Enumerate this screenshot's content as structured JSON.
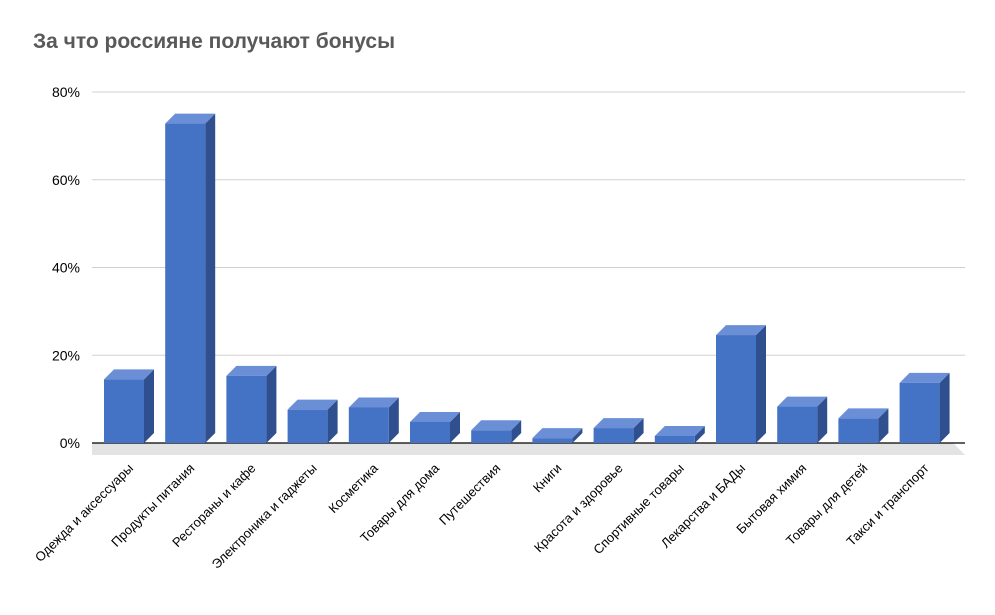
{
  "chart_data": {
    "type": "bar",
    "title": "За что россияне получают бонусы",
    "xlabel": "",
    "ylabel": "",
    "ylim": [
      0,
      80
    ],
    "y_ticks": [
      "0%",
      "20%",
      "40%",
      "60%",
      "80%"
    ],
    "y_tick_values": [
      0,
      20,
      40,
      60,
      80
    ],
    "grid": true,
    "legend": "none",
    "bar_style": "3d",
    "colors": {
      "bar_front": "#4472c4",
      "bar_top": "#6a8fd6",
      "bar_side": "#2f4f8f",
      "floor": "#e3e3e3",
      "grid": "#d0d0d0",
      "axis": "#000000"
    },
    "categories": [
      "Одежда и аксессуары",
      "Продукты питания",
      "Рестораны и кафе",
      "Электроника и гаджеты",
      "Косметика",
      "Товары для дома",
      "Путешествия",
      "Книги",
      "Красота и здоровье",
      "Спортивные товары",
      "Лекарства и БАДы",
      "Бытовая химия",
      "Товары для детей",
      "Такси и транспорт"
    ],
    "values": [
      14.5,
      72.8,
      15.3,
      7.6,
      8.1,
      4.8,
      2.9,
      1.1,
      3.4,
      1.6,
      24.6,
      8.3,
      5.6,
      13.7
    ]
  }
}
